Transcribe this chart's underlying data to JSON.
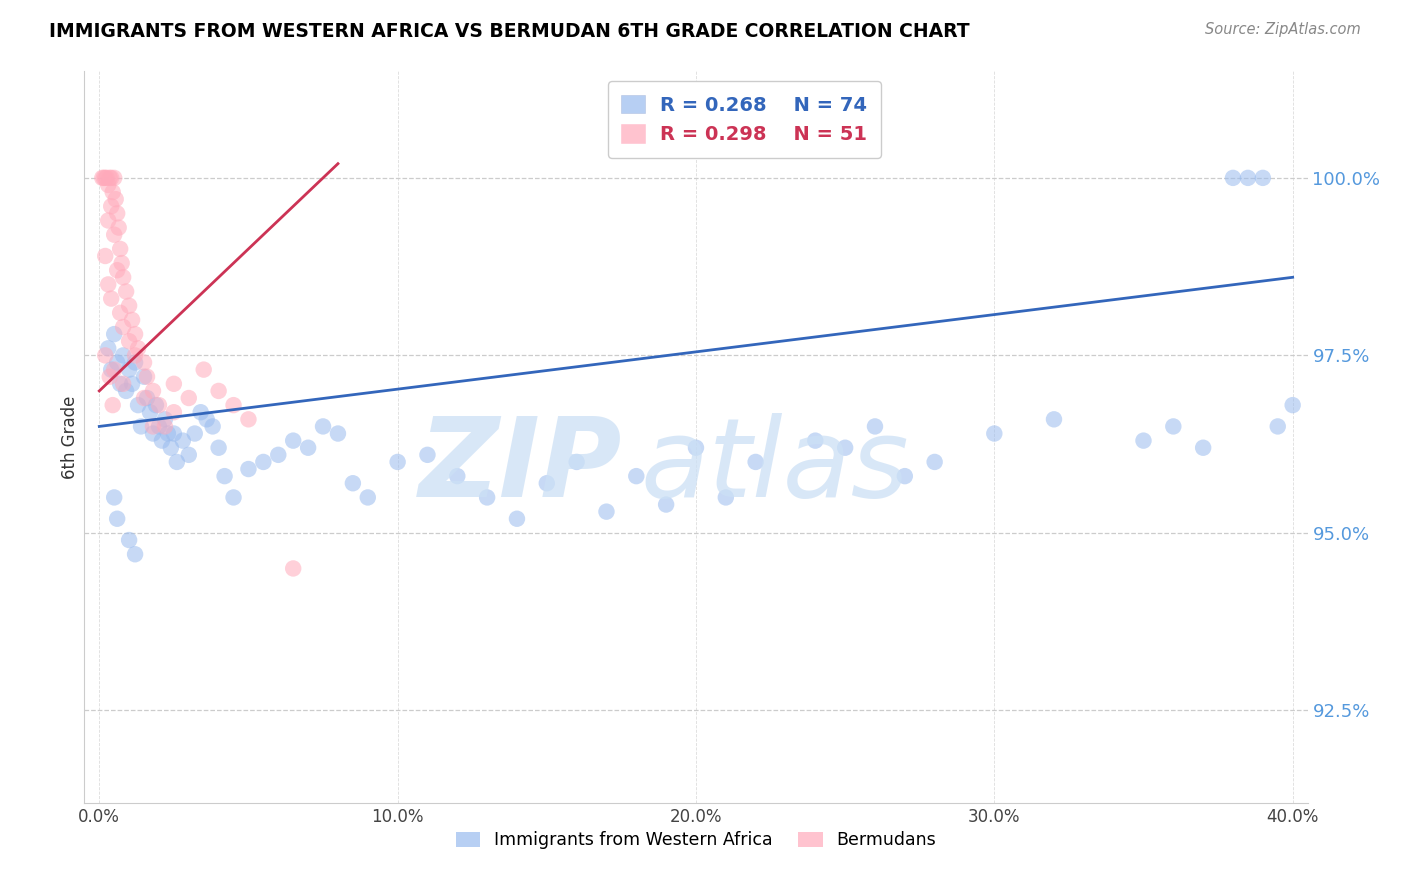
{
  "title": "IMMIGRANTS FROM WESTERN AFRICA VS BERMUDAN 6TH GRADE CORRELATION CHART",
  "source": "Source: ZipAtlas.com",
  "ylabel": "6th Grade",
  "y_ticks": [
    92.5,
    95.0,
    97.5,
    100.0
  ],
  "y_tick_labels": [
    "92.5%",
    "95.0%",
    "97.5%",
    "100.0%"
  ],
  "x_ticks": [
    0,
    10,
    20,
    30,
    40
  ],
  "x_tick_labels": [
    "0.0%",
    "10.0%",
    "20.0%",
    "30.0%",
    "40.0%"
  ],
  "x_min": -0.5,
  "x_max": 40.5,
  "y_min": 91.2,
  "y_max": 101.5,
  "legend_blue_r": "R = 0.268",
  "legend_blue_n": "N = 74",
  "legend_pink_r": "R = 0.298",
  "legend_pink_n": "N = 51",
  "blue_label": "Immigrants from Western Africa",
  "pink_label": "Bermudans",
  "blue_scatter_color": "#99bbee",
  "pink_scatter_color": "#ffaabb",
  "blue_line_color": "#3366bb",
  "pink_line_color": "#cc3355",
  "y_axis_color": "#5599dd",
  "blue_scatter_x": [
    0.3,
    0.4,
    0.5,
    0.6,
    0.7,
    0.8,
    0.9,
    1.0,
    1.1,
    1.2,
    1.3,
    1.4,
    1.5,
    1.6,
    1.7,
    1.8,
    1.9,
    2.0,
    2.1,
    2.2,
    2.3,
    2.4,
    2.5,
    2.6,
    2.8,
    3.0,
    3.2,
    3.4,
    3.6,
    3.8,
    4.0,
    4.2,
    4.5,
    5.0,
    5.5,
    6.0,
    6.5,
    7.0,
    7.5,
    8.0,
    8.5,
    9.0,
    10.0,
    11.0,
    12.0,
    13.0,
    14.0,
    15.0,
    16.0,
    17.0,
    18.0,
    19.0,
    20.0,
    21.0,
    22.0,
    24.0,
    25.0,
    26.0,
    27.0,
    28.0,
    30.0,
    32.0,
    35.0,
    36.0,
    37.0,
    38.0,
    39.0,
    40.0,
    38.5,
    39.5,
    0.5,
    0.6,
    1.0,
    1.2
  ],
  "blue_scatter_y": [
    97.6,
    97.3,
    97.8,
    97.4,
    97.1,
    97.5,
    97.0,
    97.3,
    97.1,
    97.4,
    96.8,
    96.5,
    97.2,
    96.9,
    96.7,
    96.4,
    96.8,
    96.5,
    96.3,
    96.6,
    96.4,
    96.2,
    96.4,
    96.0,
    96.3,
    96.1,
    96.4,
    96.7,
    96.6,
    96.5,
    96.2,
    95.8,
    95.5,
    95.9,
    96.0,
    96.1,
    96.3,
    96.2,
    96.5,
    96.4,
    95.7,
    95.5,
    96.0,
    96.1,
    95.8,
    95.5,
    95.2,
    95.7,
    96.0,
    95.3,
    95.8,
    95.4,
    96.2,
    95.5,
    96.0,
    96.3,
    96.2,
    96.5,
    95.8,
    96.0,
    96.4,
    96.6,
    96.3,
    96.5,
    96.2,
    100.0,
    100.0,
    96.8,
    100.0,
    96.5,
    95.5,
    95.2,
    94.9,
    94.7
  ],
  "pink_scatter_x": [
    0.1,
    0.15,
    0.2,
    0.25,
    0.3,
    0.35,
    0.4,
    0.45,
    0.5,
    0.55,
    0.6,
    0.65,
    0.7,
    0.75,
    0.8,
    0.9,
    1.0,
    1.1,
    1.2,
    1.3,
    1.5,
    1.6,
    1.8,
    2.0,
    2.5,
    3.0,
    3.5,
    4.0,
    0.4,
    0.3,
    0.5,
    0.2,
    0.6,
    0.3,
    0.4,
    0.7,
    0.8,
    1.0,
    1.2,
    0.5,
    0.8,
    1.5,
    2.5,
    0.2,
    0.35,
    0.45,
    2.2,
    1.8,
    4.5,
    5.0,
    6.5
  ],
  "pink_scatter_y": [
    100.0,
    100.0,
    100.0,
    100.0,
    99.9,
    100.0,
    100.0,
    99.8,
    100.0,
    99.7,
    99.5,
    99.3,
    99.0,
    98.8,
    98.6,
    98.4,
    98.2,
    98.0,
    97.8,
    97.6,
    97.4,
    97.2,
    97.0,
    96.8,
    97.1,
    96.9,
    97.3,
    97.0,
    99.6,
    99.4,
    99.2,
    98.9,
    98.7,
    98.5,
    98.3,
    98.1,
    97.9,
    97.7,
    97.5,
    97.3,
    97.1,
    96.9,
    96.7,
    97.5,
    97.2,
    96.8,
    96.5,
    96.5,
    96.8,
    96.6,
    94.5
  ],
  "blue_line_x": [
    0.0,
    40.0
  ],
  "blue_line_y": [
    96.5,
    98.6
  ],
  "pink_line_x": [
    0.0,
    8.0
  ],
  "pink_line_y": [
    97.0,
    100.2
  ]
}
